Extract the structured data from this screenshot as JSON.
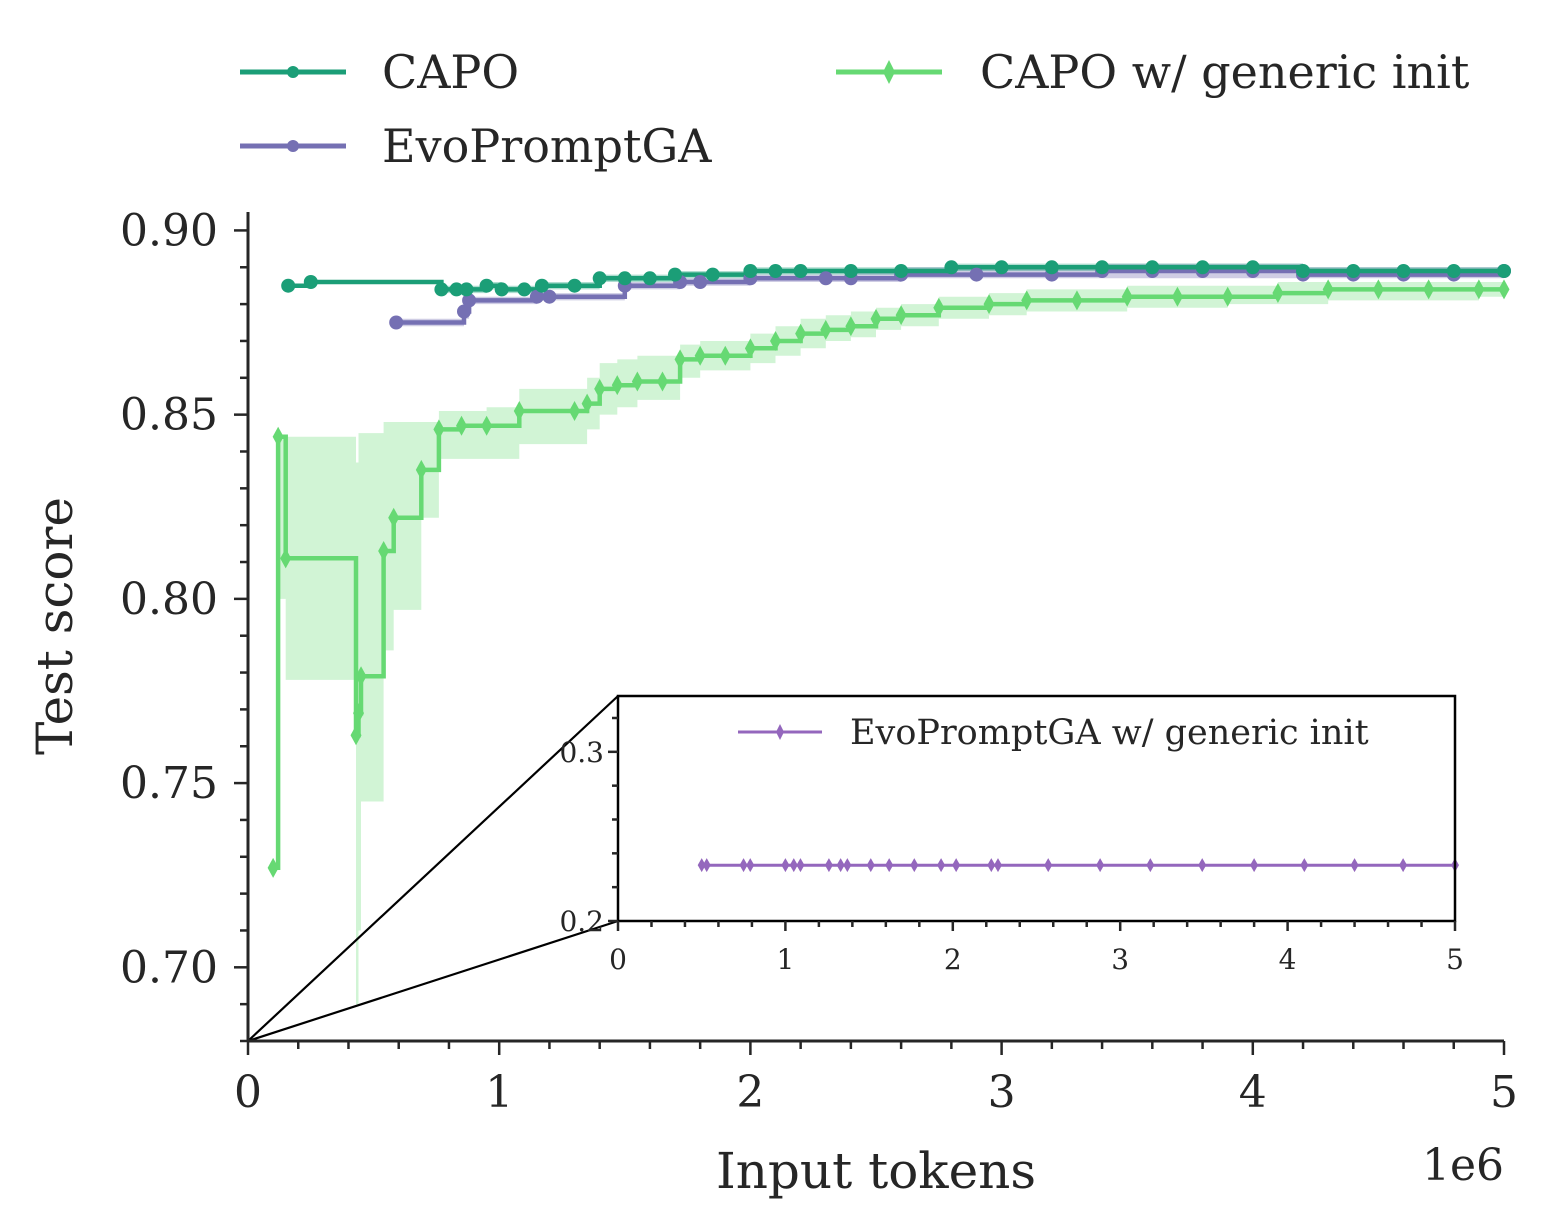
{
  "chart_data": [
    {
      "type": "line",
      "xlabel": "Input tokens",
      "ylabel": "Test score",
      "x_offset_text": "1e6",
      "xlim": [
        0,
        5000000
      ],
      "ylim": [
        0.68,
        0.905
      ],
      "xticks": [
        0,
        1000000,
        2000000,
        3000000,
        4000000,
        5000000
      ],
      "xtick_labels": [
        "0",
        "1",
        "2",
        "3",
        "4",
        "5"
      ],
      "yticks": [
        0.7,
        0.75,
        0.8,
        0.85,
        0.9
      ],
      "ytick_labels": [
        "0.70",
        "0.75",
        "0.80",
        "0.85",
        "0.90"
      ],
      "grid": false,
      "legend": {
        "placement": "top",
        "columns": 2
      },
      "series": [
        {
          "name": "CAPO",
          "color": "#1b9e77",
          "marker": "circle",
          "x": [
            160000,
            250000,
            770000,
            830000,
            870000,
            950000,
            1010000,
            1100000,
            1170000,
            1300000,
            1400000,
            1500000,
            1600000,
            1700000,
            1850000,
            2000000,
            2100000,
            2200000,
            2400000,
            2600000,
            2800000,
            3000000,
            3200000,
            3400000,
            3600000,
            3800000,
            4000000,
            4200000,
            4400000,
            4600000,
            4800000,
            5000000
          ],
          "y": [
            0.885,
            0.886,
            0.884,
            0.884,
            0.884,
            0.885,
            0.884,
            0.884,
            0.885,
            0.885,
            0.887,
            0.887,
            0.887,
            0.888,
            0.888,
            0.889,
            0.889,
            0.889,
            0.889,
            0.889,
            0.89,
            0.89,
            0.89,
            0.89,
            0.89,
            0.89,
            0.89,
            0.889,
            0.889,
            0.889,
            0.889,
            0.889
          ],
          "band_lower": [
            0.885,
            0.886,
            0.883,
            0.883,
            0.883,
            0.884,
            0.883,
            0.883,
            0.884,
            0.884,
            0.886,
            0.886,
            0.886,
            0.887,
            0.887,
            0.888,
            0.888,
            0.888,
            0.888,
            0.888,
            0.889,
            0.889,
            0.889,
            0.889,
            0.889,
            0.889,
            0.889,
            0.888,
            0.888,
            0.888,
            0.888,
            0.888
          ],
          "band_upper": [
            0.885,
            0.886,
            0.885,
            0.885,
            0.885,
            0.886,
            0.885,
            0.885,
            0.886,
            0.886,
            0.888,
            0.888,
            0.888,
            0.889,
            0.889,
            0.89,
            0.89,
            0.89,
            0.89,
            0.89,
            0.891,
            0.891,
            0.891,
            0.891,
            0.891,
            0.891,
            0.891,
            0.89,
            0.89,
            0.89,
            0.89,
            0.89
          ]
        },
        {
          "name": "EvoPromptGA",
          "color": "#7570b3",
          "marker": "circle",
          "x": [
            590000,
            860000,
            880000,
            1150000,
            1200000,
            1500000,
            1720000,
            1800000,
            2000000,
            2300000,
            2400000,
            2600000,
            2900000,
            3200000,
            3400000,
            3600000,
            3800000,
            4000000,
            4200000,
            4400000,
            4600000,
            4800000,
            5000000
          ],
          "y": [
            0.875,
            0.878,
            0.881,
            0.882,
            0.882,
            0.885,
            0.886,
            0.886,
            0.887,
            0.887,
            0.887,
            0.888,
            0.888,
            0.888,
            0.889,
            0.889,
            0.889,
            0.889,
            0.888,
            0.888,
            0.888,
            0.888,
            0.889
          ],
          "band_lower": [
            0.874,
            0.876,
            0.88,
            0.881,
            0.881,
            0.884,
            0.885,
            0.885,
            0.886,
            0.886,
            0.886,
            0.887,
            0.887,
            0.887,
            0.887,
            0.887,
            0.887,
            0.887,
            0.887,
            0.887,
            0.887,
            0.887,
            0.887
          ],
          "band_upper": [
            0.876,
            0.88,
            0.882,
            0.883,
            0.883,
            0.886,
            0.887,
            0.887,
            0.888,
            0.888,
            0.889,
            0.89,
            0.89,
            0.89,
            0.891,
            0.891,
            0.891,
            0.891,
            0.89,
            0.89,
            0.89,
            0.89,
            0.891
          ]
        },
        {
          "name": "CAPO w/ generic init",
          "color": "#66d973",
          "marker": "diamond",
          "x": [
            100000,
            120000,
            150000,
            430000,
            440000,
            450000,
            540000,
            580000,
            690000,
            760000,
            850000,
            950000,
            1080000,
            1300000,
            1350000,
            1400000,
            1470000,
            1550000,
            1650000,
            1720000,
            1800000,
            1900000,
            2000000,
            2100000,
            2200000,
            2300000,
            2400000,
            2500000,
            2600000,
            2750000,
            2950000,
            3100000,
            3300000,
            3500000,
            3700000,
            3900000,
            4100000,
            4300000,
            4500000,
            4700000,
            4900000,
            5000000
          ],
          "y": [
            0.727,
            0.844,
            0.811,
            0.763,
            0.769,
            0.779,
            0.813,
            0.822,
            0.835,
            0.846,
            0.847,
            0.847,
            0.851,
            0.851,
            0.853,
            0.857,
            0.858,
            0.859,
            0.859,
            0.865,
            0.866,
            0.866,
            0.868,
            0.87,
            0.872,
            0.873,
            0.874,
            0.876,
            0.877,
            0.879,
            0.88,
            0.881,
            0.881,
            0.882,
            0.882,
            0.882,
            0.883,
            0.884,
            0.884,
            0.884,
            0.884,
            0.884
          ],
          "band_lower": [
            0.727,
            0.8,
            0.778,
            0.69,
            0.71,
            0.745,
            0.786,
            0.797,
            0.822,
            0.838,
            0.838,
            0.838,
            0.842,
            0.842,
            0.846,
            0.85,
            0.852,
            0.854,
            0.854,
            0.86,
            0.862,
            0.862,
            0.864,
            0.866,
            0.868,
            0.87,
            0.871,
            0.873,
            0.874,
            0.876,
            0.877,
            0.878,
            0.878,
            0.879,
            0.879,
            0.88,
            0.88,
            0.881,
            0.881,
            0.881,
            0.882,
            0.882
          ],
          "band_upper": [
            0.727,
            0.844,
            0.844,
            0.837,
            0.845,
            0.845,
            0.848,
            0.848,
            0.848,
            0.851,
            0.851,
            0.852,
            0.857,
            0.857,
            0.86,
            0.864,
            0.865,
            0.866,
            0.866,
            0.869,
            0.87,
            0.87,
            0.872,
            0.874,
            0.876,
            0.877,
            0.878,
            0.879,
            0.88,
            0.882,
            0.883,
            0.884,
            0.884,
            0.885,
            0.885,
            0.885,
            0.886,
            0.886,
            0.886,
            0.886,
            0.886,
            0.886
          ]
        }
      ]
    },
    {
      "type": "line",
      "xlim": [
        0,
        5000000
      ],
      "ylim": [
        0.2,
        0.333
      ],
      "xticks": [
        0,
        1000000,
        2000000,
        3000000,
        4000000,
        5000000
      ],
      "xtick_labels": [
        "0",
        "1",
        "2",
        "3",
        "4",
        "5"
      ],
      "yticks": [
        0.2,
        0.3
      ],
      "ytick_labels": [
        "0.2",
        "0.3"
      ],
      "legend": {
        "placement": "top-right"
      },
      "series": [
        {
          "name": "EvoPromptGA w/ generic init",
          "color": "#9467bd",
          "marker": "diamond",
          "x": [
            500000,
            530000,
            750000,
            790000,
            1000000,
            1050000,
            1090000,
            1260000,
            1330000,
            1370000,
            1510000,
            1620000,
            1770000,
            1930000,
            2020000,
            2230000,
            2270000,
            2570000,
            2880000,
            3180000,
            3490000,
            3800000,
            4100000,
            4400000,
            4690000,
            5000000
          ],
          "y": [
            0.233,
            0.233,
            0.233,
            0.233,
            0.233,
            0.233,
            0.233,
            0.233,
            0.233,
            0.233,
            0.233,
            0.233,
            0.233,
            0.233,
            0.233,
            0.233,
            0.233,
            0.233,
            0.233,
            0.233,
            0.233,
            0.233,
            0.233,
            0.233,
            0.233,
            0.233
          ]
        }
      ]
    }
  ]
}
